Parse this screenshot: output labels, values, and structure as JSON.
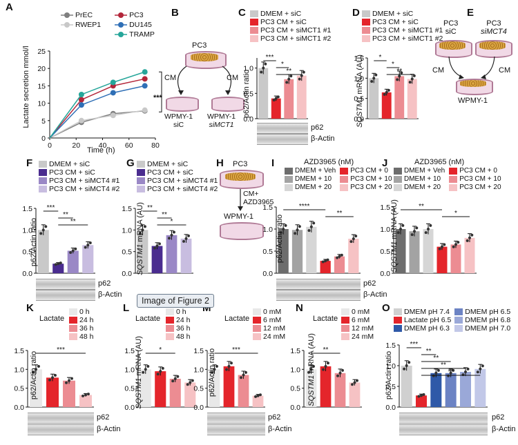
{
  "panels": {
    "A": {
      "label": "A",
      "ylabel": "Lactate secretion mmol/l",
      "xlabel": "Time (h)",
      "sig": "***",
      "legend": [
        {
          "name": "PrEC",
          "color": "#7f7f7f"
        },
        {
          "name": "RWEP1",
          "color": "#c8c8c8"
        },
        {
          "name": "PC3",
          "color": "#b3263a"
        },
        {
          "name": "DU145",
          "color": "#2f6fb6"
        },
        {
          "name": "TRAMP",
          "color": "#26a69a"
        }
      ]
    },
    "B": {
      "label": "B",
      "top": "PC3",
      "cm_left": "CM",
      "cm_right": "CM",
      "left": "WPMY-1",
      "left2": "siC",
      "right": "WPMY-1",
      "right2": "siMCT1"
    },
    "C": {
      "label": "C",
      "ylabel": "p62/Actin ratio",
      "legend": [
        "DMEM + siC",
        "PC3 CM + siC",
        "PC3 CM + siMCT1 #1",
        "PC3 CM + siMCT1 #2"
      ],
      "sig": [
        "***",
        "*",
        "**"
      ],
      "blots": [
        "p62",
        "β-Actin"
      ]
    },
    "D": {
      "label": "D",
      "ylabel": "SQSTM1 mRNA (AU)",
      "legend": [
        "DMEM + siC",
        "PC3 CM + siC",
        "PC3 CM + siMCT1 #1",
        "PC3 CM + siMCT1 #2"
      ],
      "sig": [
        "*",
        "*",
        "**"
      ]
    },
    "E": {
      "label": "E",
      "a1": "PC3",
      "a2": "siC",
      "b1": "PC3",
      "b2": "siMCT4",
      "cm": "CM",
      "bottom": "WPMY-1"
    },
    "F": {
      "label": "F",
      "ylabel": "p62/Actin ratio",
      "legend": [
        "DMEM + siC",
        "PC3 CM + siC",
        "PC3 CM + siMCT4 #1",
        "PC3 CM + siMCT4 #2"
      ],
      "sig": [
        "***",
        "**",
        "**"
      ],
      "blots": [
        "p62",
        "β-Actin"
      ]
    },
    "G": {
      "label": "G",
      "ylabel": "SQSTM1 mRNA (AU)",
      "legend": [
        "DMEM + siC",
        "PC3 CM + siC",
        "PC3 CM + siMCT4 #1",
        "PC3 CM + siMCT4 #2"
      ],
      "sig": [
        "**",
        "**",
        "*"
      ]
    },
    "H": {
      "label": "H",
      "top": "PC3",
      "arrow": "CM+",
      "arrow2": "AZD3965",
      "bottom": "WPMY-1"
    },
    "I": {
      "label": "I",
      "title": "AZD3965 (nM)",
      "ylabel": "p62/Actin ratio",
      "legend": [
        "DMEM + Veh",
        "DMEM + 10",
        "DMEM + 20",
        "PC3 CM + 0",
        "PC3 CM + 10",
        "PC3 CM + 20"
      ],
      "sig": [
        "****",
        "**"
      ],
      "blots": [
        "p62",
        "β-Actin"
      ]
    },
    "J": {
      "label": "J",
      "title": "AZD3965 (nM)",
      "ylabel": "SQSTM1 mRNA (AU)",
      "legend": [
        "DMEM + Veh",
        "DMEM + 10",
        "DMEM + 20",
        "PC3 CM + 0",
        "PC3 CM + 10",
        "PC3 CM + 20"
      ],
      "sig": [
        "**",
        "*"
      ]
    },
    "K": {
      "label": "K",
      "leghead": "Lactate",
      "legend": [
        "0 h",
        "24 h",
        "36 h",
        "48 h"
      ],
      "ylabel": "p62/Actin ratio",
      "sig": [
        "***"
      ],
      "blots": [
        "p62",
        "β-Actin"
      ]
    },
    "L": {
      "label": "L",
      "leghead": "Lactate",
      "legend": [
        "0 h",
        "24 h",
        "36 h",
        "48 h"
      ],
      "ylabel": "SQSTM1 mRNA (AU)",
      "sig": [
        "*"
      ],
      "tooltip": "Image of Figure 2"
    },
    "M": {
      "label": "M",
      "leghead": "Lactate",
      "legend": [
        "0 mM",
        "6 mM",
        "12 mM",
        "24 mM"
      ],
      "ylabel": "p62/Actin ratio",
      "sig": [
        "***"
      ],
      "blots": [
        "p62",
        "β-Actin"
      ]
    },
    "N": {
      "label": "N",
      "leghead": "Lactate",
      "legend": [
        "0 mM",
        "6 mM",
        "12 mM",
        "24 mM"
      ],
      "ylabel": "SQSTM1 mRNA (AU)",
      "sig": [
        "**"
      ]
    },
    "O": {
      "label": "O",
      "ylabel": "p62/Actin ratio",
      "legend": [
        "DMEM pH 7.4",
        "Lactate pH 6.5",
        "DMEM pH 6.3",
        "DMEM pH 6.5",
        "DMEM pH 6.8",
        "DMEM pH 7.0"
      ],
      "sig": [
        "***",
        "**",
        "**",
        "**",
        "**"
      ],
      "blots": [
        "p62",
        "β-Actin"
      ]
    }
  },
  "chart_data": [
    {
      "panel": "A",
      "type": "line",
      "xlabel": "Time (h)",
      "ylabel": "Lactate secretion mmol/l",
      "x": [
        0,
        24,
        48,
        72
      ],
      "xlim": [
        0,
        80
      ],
      "ylim": [
        0,
        25
      ],
      "series": [
        {
          "name": "PrEC",
          "values": [
            0,
            4.5,
            7,
            7.8
          ]
        },
        {
          "name": "RWEP1",
          "values": [
            0,
            5,
            6.5,
            8
          ]
        },
        {
          "name": "PC3",
          "values": [
            0,
            11,
            15,
            17
          ]
        },
        {
          "name": "DU145",
          "values": [
            0,
            9.5,
            13,
            15
          ]
        },
        {
          "name": "TRAMP",
          "values": [
            0,
            12.5,
            16,
            19
          ]
        }
      ]
    },
    {
      "panel": "C",
      "type": "bar",
      "ylabel": "p62/Actin ratio",
      "ylim": [
        0,
        1.2
      ],
      "categories": [
        "DMEM + siC",
        "PC3 CM + siC",
        "PC3 CM + siMCT1 #1",
        "PC3 CM + siMCT1 #2"
      ],
      "values": [
        1.0,
        0.4,
        0.78,
        0.85
      ]
    },
    {
      "panel": "D",
      "type": "bar",
      "ylabel": "SQSTM1 mRNA (AU)",
      "ylim": [
        0,
        1.5
      ],
      "categories": [
        "DMEM + siC",
        "PC3 CM + siC",
        "PC3 CM + siMCT1 #1",
        "PC3 CM + siMCT1 #2"
      ],
      "values": [
        1.0,
        0.65,
        1.05,
        0.98
      ]
    },
    {
      "panel": "F",
      "type": "bar",
      "ylabel": "p62/Actin ratio",
      "ylim": [
        0,
        1.5
      ],
      "categories": [
        "DMEM + siC",
        "PC3 CM + siC",
        "PC3 CM + siMCT4 #1",
        "PC3 CM + siMCT4 #2"
      ],
      "values": [
        1.0,
        0.22,
        0.52,
        0.65
      ]
    },
    {
      "panel": "G",
      "type": "bar",
      "ylabel": "SQSTM1 mRNA (AU)",
      "ylim": [
        0,
        1.5
      ],
      "categories": [
        "DMEM + siC",
        "PC3 CM + siC",
        "PC3 CM + siMCT4 #1",
        "PC3 CM + siMCT4 #2"
      ],
      "values": [
        1.0,
        0.63,
        0.88,
        0.8
      ]
    },
    {
      "panel": "I",
      "type": "bar",
      "ylabel": "p62/Actin ratio",
      "ylim": [
        0,
        1.5
      ],
      "categories": [
        "DMEM + Veh",
        "DMEM + 10",
        "DMEM + 20",
        "PC3 CM + 0",
        "PC3 CM + 10",
        "PC3 CM + 20"
      ],
      "values": [
        1.0,
        0.98,
        1.05,
        0.28,
        0.38,
        0.78
      ]
    },
    {
      "panel": "J",
      "type": "bar",
      "ylabel": "SQSTM1 mRNA (AU)",
      "ylim": [
        0,
        1.5
      ],
      "categories": [
        "DMEM + Veh",
        "DMEM + 10",
        "DMEM + 20",
        "PC3 CM + 0",
        "PC3 CM + 10",
        "PC3 CM + 20"
      ],
      "values": [
        1.0,
        0.95,
        1.0,
        0.6,
        0.65,
        0.8
      ]
    },
    {
      "panel": "K",
      "type": "bar",
      "ylabel": "p62/Actin ratio",
      "ylim": [
        0,
        1.5
      ],
      "categories": [
        "0 h",
        "24 h",
        "36 h",
        "48 h"
      ],
      "values": [
        1.0,
        0.78,
        0.7,
        0.32
      ]
    },
    {
      "panel": "L",
      "type": "bar",
      "ylabel": "SQSTM1 mRNA (AU)",
      "ylim": [
        0,
        1.5
      ],
      "categories": [
        "0 h",
        "24 h",
        "36 h",
        "48 h"
      ],
      "values": [
        1.0,
        0.95,
        0.75,
        0.65
      ]
    },
    {
      "panel": "M",
      "type": "bar",
      "ylabel": "p62/Actin ratio",
      "ylim": [
        0,
        1.5
      ],
      "categories": [
        "0 mM",
        "6 mM",
        "12 mM",
        "24 mM"
      ],
      "values": [
        1.0,
        1.08,
        0.85,
        0.3
      ]
    },
    {
      "panel": "N",
      "type": "bar",
      "ylabel": "SQSTM1 mRNA (AU)",
      "ylim": [
        0,
        1.5
      ],
      "categories": [
        "0 mM",
        "6 mM",
        "12 mM",
        "24 mM"
      ],
      "values": [
        1.0,
        1.08,
        0.9,
        0.65
      ]
    },
    {
      "panel": "O",
      "type": "bar",
      "ylabel": "p62/Actin ratio",
      "ylim": [
        0,
        1.5
      ],
      "categories": [
        "DMEM pH 7.4",
        "Lactate pH 6.5",
        "DMEM pH 6.3",
        "DMEM pH 6.5",
        "DMEM pH 6.8",
        "DMEM pH 7.0"
      ],
      "values": [
        1.0,
        0.28,
        0.82,
        0.82,
        0.85,
        0.92
      ]
    }
  ],
  "colors": {
    "grey": "#c9c9c9",
    "red": "#e4252b",
    "pink1": "#ec8c92",
    "pink2": "#f6c2c4",
    "purple": "#4a2c8f",
    "lav1": "#9a88c6",
    "lav2": "#c8bde0",
    "darkgrey": "#6d6d6d",
    "midgrey": "#a3a3a3",
    "lightgrey": "#d6d6d6",
    "blue": "#2f59a8",
    "blue2": "#6c83c4",
    "blue3": "#9aa8d8",
    "blue4": "#c2c8e8"
  }
}
